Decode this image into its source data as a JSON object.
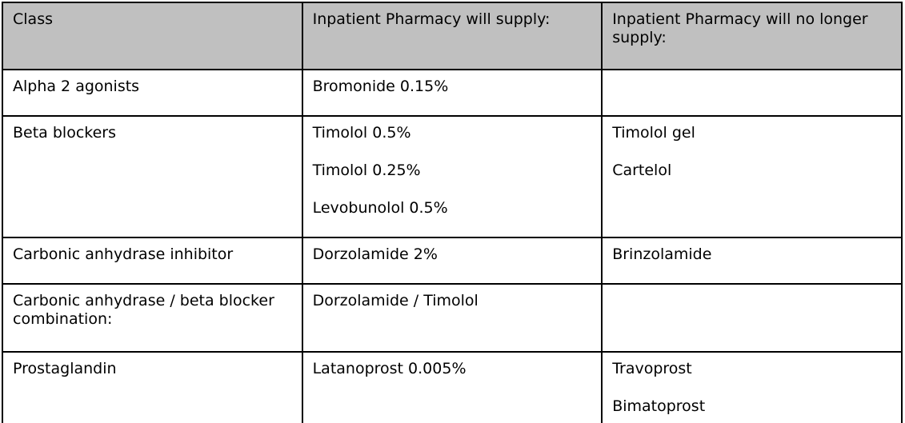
{
  "colors": {
    "page_background": "#ffffff",
    "header_background": "#c0c0c0",
    "border": "#000000",
    "text": "#000000"
  },
  "table": {
    "columns": [
      {
        "label": "Class"
      },
      {
        "label": "Inpatient Pharmacy will supply:"
      },
      {
        "label": "Inpatient Pharmacy will no longer supply:"
      }
    ],
    "rows": [
      {
        "class": "Alpha 2 agonists",
        "will_supply": [
          "Bromonide 0.15%"
        ],
        "no_longer_supply": []
      },
      {
        "class": "Beta blockers",
        "will_supply": [
          "Timolol 0.5%",
          "Timolol 0.25%",
          "Levobunolol 0.5%"
        ],
        "no_longer_supply": [
          "Timolol gel",
          "Cartelol"
        ]
      },
      {
        "class": "Carbonic anhydrase inhibitor",
        "will_supply": [
          "Dorzolamide 2%"
        ],
        "no_longer_supply": [
          "Brinzolamide"
        ]
      },
      {
        "class": "Carbonic anhydrase / beta blocker combination:",
        "will_supply": [
          "Dorzolamide / Timolol"
        ],
        "no_longer_supply": []
      },
      {
        "class": "Prostaglandin",
        "will_supply": [
          "Latanoprost 0.005%"
        ],
        "no_longer_supply": [
          "Travoprost",
          "Bimatoprost"
        ]
      }
    ]
  }
}
